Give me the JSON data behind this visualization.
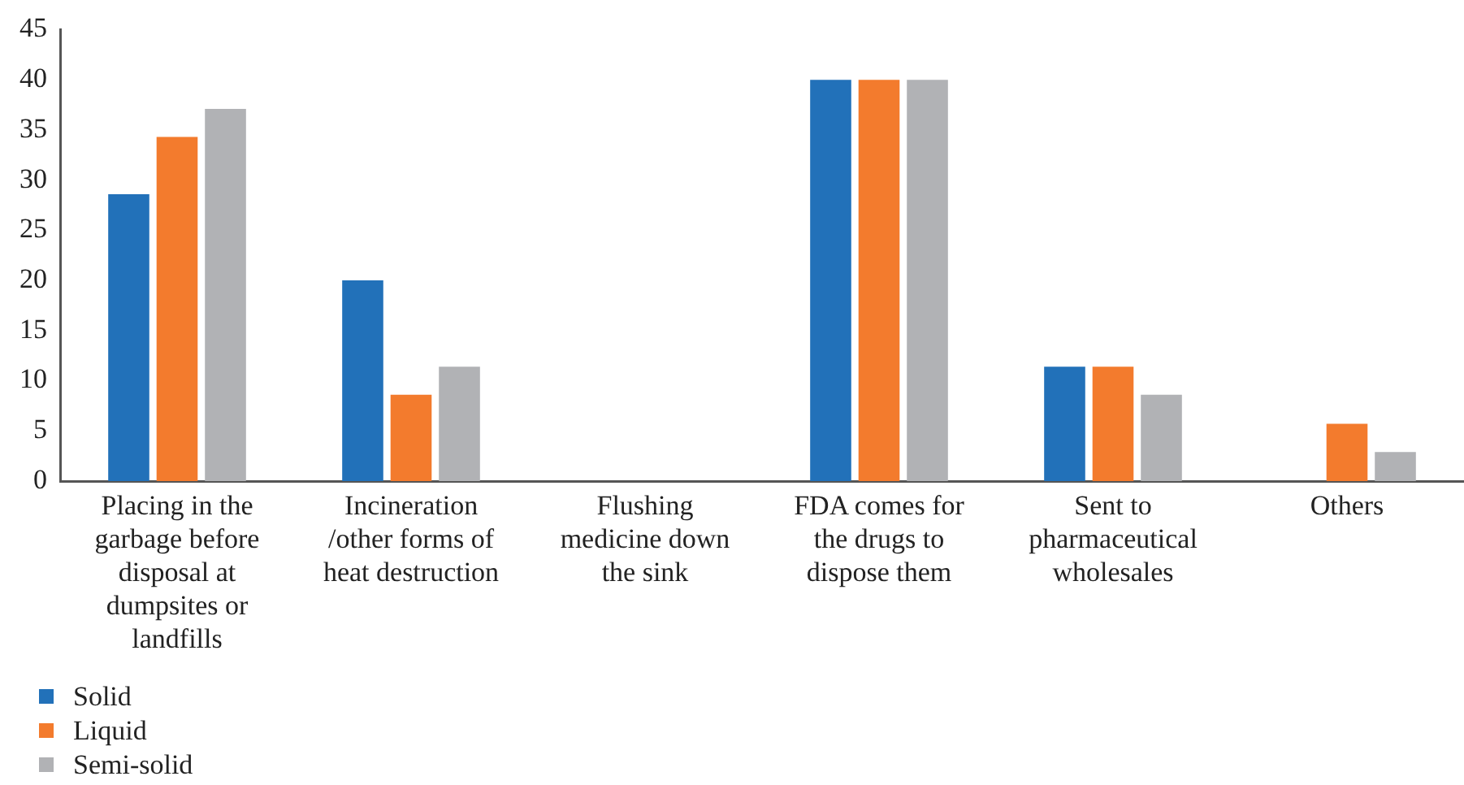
{
  "chart_data": {
    "type": "bar",
    "categories": [
      "Placing in the garbage before disposal at dumpsites or landfills",
      "Incineration /other forms of heat destruction",
      "Flushing medicine down the sink",
      "FDA comes for the drugs to dispose them",
      "Sent to pharmaceutical wholesales",
      "Others"
    ],
    "series": [
      {
        "name": "Solid",
        "color": "#2271b9",
        "values": [
          28.6,
          20,
          0,
          40,
          11.4,
          0
        ]
      },
      {
        "name": "Liquid",
        "color": "#f37b2d",
        "values": [
          34.3,
          8.6,
          0,
          40,
          11.4,
          5.7
        ]
      },
      {
        "name": "Semi-solid",
        "color": "#b1b2b5",
        "values": [
          37.1,
          11.4,
          0,
          40,
          8.6,
          2.9
        ]
      }
    ],
    "ylim": [
      0,
      45
    ],
    "yticks": [
      0,
      5,
      10,
      15,
      20,
      25,
      30,
      35,
      40,
      45
    ],
    "grid": false,
    "legend": "bottom left"
  }
}
